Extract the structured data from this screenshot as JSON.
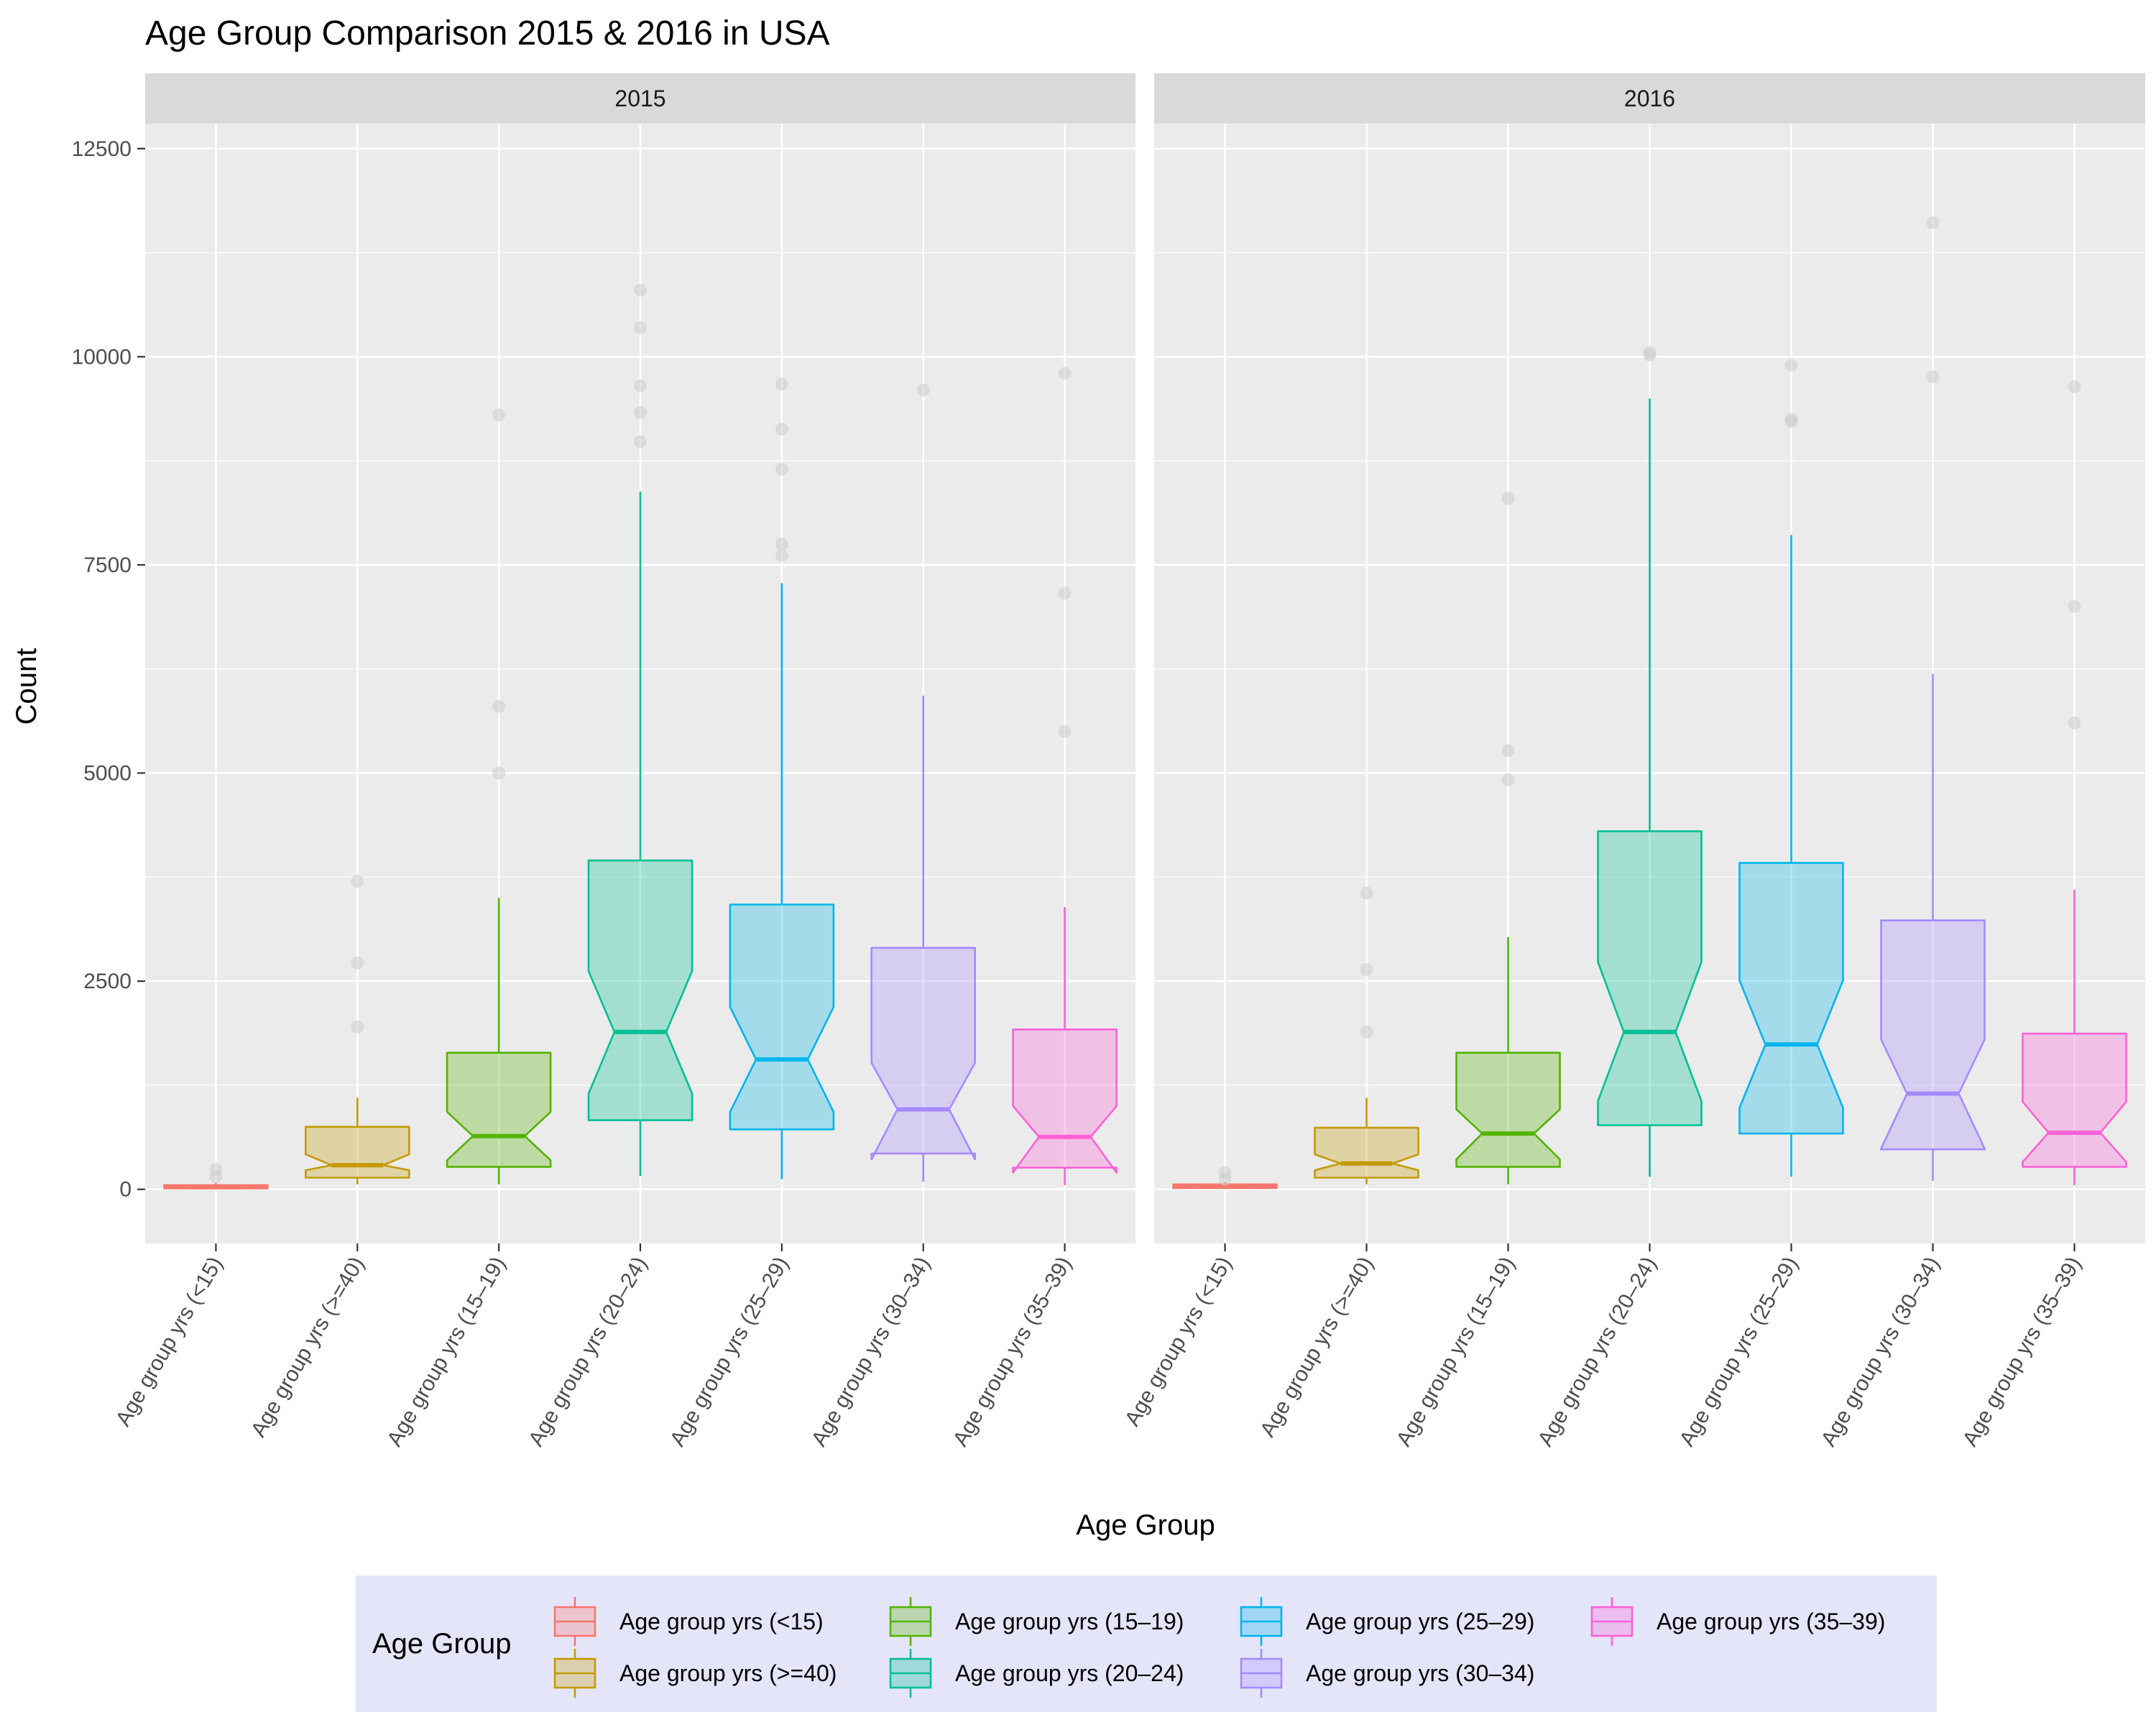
{
  "chart_data": {
    "type": "boxplot",
    "title": "Age Group Comparison 2015 & 2016 in USA",
    "xlabel": "Age Group",
    "ylabel": "Count",
    "ylim": [
      -650,
      12800
    ],
    "yticks": [
      0,
      2500,
      5000,
      7500,
      10000,
      12500
    ],
    "grid": true,
    "notched": true,
    "legend": {
      "title": "Age Group",
      "position": "bottom"
    },
    "categories": [
      "Age group yrs (<15)",
      "Age group yrs (>=40)",
      "Age group yrs (15–19)",
      "Age group yrs (20–24)",
      "Age group yrs (25–29)",
      "Age group yrs (30–34)",
      "Age group yrs (35–39)"
    ],
    "colors": [
      "#F8766D",
      "#C49A00",
      "#53B400",
      "#00C094",
      "#00B6EB",
      "#A58AFF",
      "#FB61D7"
    ],
    "outlier_color": "#cccccc",
    "facets": [
      {
        "label": "2015",
        "boxes": [
          {
            "category": "Age group yrs (<15)",
            "min": 5,
            "q1": 10,
            "median": 25,
            "q3": 50,
            "max": 80,
            "notch": [
              18,
              32
            ],
            "outliers": [
              150,
              240
            ]
          },
          {
            "category": "Age group yrs (>=40)",
            "min": 60,
            "q1": 140,
            "median": 290,
            "q3": 750,
            "max": 1100,
            "notch": [
              230,
              420
            ],
            "outliers": [
              1950,
              2720,
              3700
            ]
          },
          {
            "category": "Age group yrs (15–19)",
            "min": 60,
            "q1": 270,
            "median": 640,
            "q3": 1640,
            "max": 3500,
            "notch": [
              350,
              930
            ],
            "outliers": [
              5000,
              5800,
              9300
            ]
          },
          {
            "category": "Age group yrs (20–24)",
            "min": 160,
            "q1": 830,
            "median": 1890,
            "q3": 3950,
            "max": 8380,
            "notch": [
              1150,
              2620
            ],
            "outliers": [
              8980,
              9330,
              9650,
              10350,
              10800
            ]
          },
          {
            "category": "Age group yrs (25–29)",
            "min": 120,
            "q1": 720,
            "median": 1560,
            "q3": 3420,
            "max": 7280,
            "notch": [
              930,
              2190
            ],
            "outliers": [
              7610,
              7750,
              8650,
              9130,
              9670
            ]
          },
          {
            "category": "Age group yrs (30–34)",
            "min": 90,
            "q1": 430,
            "median": 960,
            "q3": 2900,
            "max": 5930,
            "notch": [
              360,
              1520
            ],
            "outliers": [
              9600
            ]
          },
          {
            "category": "Age group yrs (35–39)",
            "min": 50,
            "q1": 260,
            "median": 630,
            "q3": 1920,
            "max": 3390,
            "notch": [
              200,
              1000
            ],
            "outliers": [
              5500,
              7160,
              9800
            ]
          }
        ]
      },
      {
        "label": "2016",
        "boxes": [
          {
            "category": "Age group yrs (<15)",
            "min": 5,
            "q1": 15,
            "median": 40,
            "q3": 60,
            "max": 90,
            "notch": [
              30,
              50
            ],
            "outliers": [
              120,
              200
            ]
          },
          {
            "category": "Age group yrs (>=40)",
            "min": 60,
            "q1": 140,
            "median": 310,
            "q3": 740,
            "max": 1100,
            "notch": [
              230,
              420
            ],
            "outliers": [
              1890,
              2640,
              3560
            ]
          },
          {
            "category": "Age group yrs (15–19)",
            "min": 60,
            "q1": 270,
            "median": 670,
            "q3": 1640,
            "max": 3030,
            "notch": [
              360,
              960
            ],
            "outliers": [
              4920,
              5270,
              8300
            ]
          },
          {
            "category": "Age group yrs (20–24)",
            "min": 150,
            "q1": 770,
            "median": 1890,
            "q3": 4300,
            "max": 9500,
            "notch": [
              1060,
              2730
            ],
            "outliers": [
              10020,
              10050
            ]
          },
          {
            "category": "Age group yrs (25–29)",
            "min": 150,
            "q1": 670,
            "median": 1740,
            "q3": 3920,
            "max": 7860,
            "notch": [
              980,
              2510
            ],
            "outliers": [
              9220,
              9250,
              9900
            ]
          },
          {
            "category": "Age group yrs (30–34)",
            "min": 100,
            "q1": 480,
            "median": 1150,
            "q3": 3230,
            "max": 6190,
            "notch": [
              490,
              1800
            ],
            "outliers": [
              9760,
              11610
            ]
          },
          {
            "category": "Age group yrs (35–39)",
            "min": 50,
            "q1": 270,
            "median": 680,
            "q3": 1870,
            "max": 3600,
            "notch": [
              330,
              1050
            ],
            "outliers": [
              5600,
              7000,
              9640
            ]
          }
        ]
      }
    ]
  }
}
